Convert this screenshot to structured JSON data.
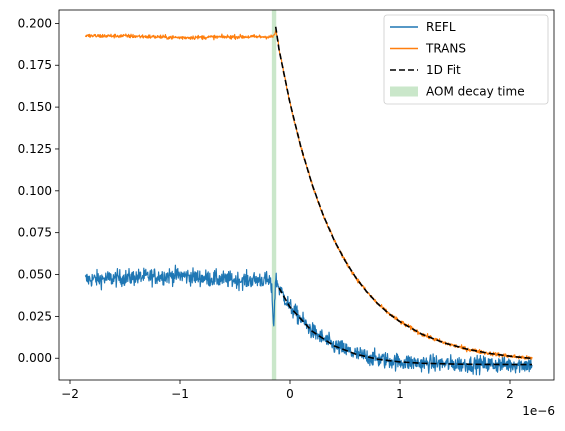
{
  "chart_data": {
    "type": "line",
    "title": "",
    "xlabel": "",
    "ylabel": "",
    "x_offset_label": "1e−6",
    "xlim": [
      -2.1,
      2.4
    ],
    "ylim": [
      -0.013,
      0.208
    ],
    "xticks": [
      -2,
      -1,
      0,
      1,
      2
    ],
    "xtick_labels": [
      "−2",
      "−1",
      "0",
      "1",
      "2"
    ],
    "yticks": [
      0.0,
      0.025,
      0.05,
      0.075,
      0.1,
      0.125,
      0.15,
      0.175,
      0.2
    ],
    "ytick_labels": [
      "0.000",
      "0.025",
      "0.050",
      "0.075",
      "0.100",
      "0.125",
      "0.150",
      "0.175",
      "0.200"
    ],
    "grid": false,
    "legend_position": "top-right",
    "series": [
      {
        "name": "REFL",
        "color": "#1f77b4",
        "style": "solid",
        "noisy": true,
        "noise": 0.0025,
        "segments": [
          [
            [
              -1.86,
              0.047
            ],
            [
              -1.5,
              0.048
            ],
            [
              -1.2,
              0.049
            ],
            [
              -1.0,
              0.0495
            ],
            [
              -0.8,
              0.048
            ],
            [
              -0.6,
              0.047
            ],
            [
              -0.4,
              0.0465
            ],
            [
              -0.25,
              0.047
            ],
            [
              -0.18,
              0.046
            ]
          ],
          [
            [
              -0.18,
              0.046
            ],
            [
              -0.16,
              0.036
            ],
            [
              -0.155,
              0.027
            ],
            [
              -0.15,
              0.019
            ],
            [
              -0.145,
              0.024
            ],
            [
              -0.14,
              0.033
            ],
            [
              -0.135,
              0.042
            ],
            [
              -0.13,
              0.047
            ],
            [
              -0.12,
              0.046
            ],
            [
              -0.1,
              0.042
            ],
            [
              0.0,
              0.0305
            ],
            [
              0.2,
              0.0162
            ],
            [
              0.4,
              0.0074
            ],
            [
              0.6,
              0.0024
            ],
            [
              0.8,
              -0.0006
            ],
            [
              1.0,
              -0.0022
            ],
            [
              1.2,
              -0.003
            ],
            [
              1.5,
              -0.0035
            ],
            [
              1.8,
              -0.0037
            ],
            [
              2.2,
              -0.0038
            ]
          ]
        ]
      },
      {
        "name": "TRANS",
        "color": "#ff7f0e",
        "style": "solid",
        "noisy": true,
        "noise": 0.0006,
        "segments": [
          [
            [
              -1.86,
              0.1925
            ],
            [
              -1.5,
              0.1925
            ],
            [
              -1.0,
              0.1915
            ],
            [
              -0.5,
              0.192
            ],
            [
              -0.15,
              0.192
            ]
          ],
          [
            [
              -0.15,
              0.192
            ],
            [
              -0.13,
              0.1955
            ],
            [
              -0.11,
              0.19
            ],
            [
              -0.1,
              0.1845
            ],
            [
              0.0,
              0.1525
            ],
            [
              0.1,
              0.1259
            ],
            [
              0.2,
              0.104
            ],
            [
              0.3,
              0.0858
            ],
            [
              0.4,
              0.0707
            ],
            [
              0.5,
              0.0583
            ],
            [
              0.6,
              0.048
            ],
            [
              0.7,
              0.0395
            ],
            [
              0.8,
              0.0324
            ],
            [
              0.9,
              0.0266
            ],
            [
              1.0,
              0.0218
            ],
            [
              1.2,
              0.0143
            ],
            [
              1.4,
              0.0092
            ],
            [
              1.6,
              0.0056
            ],
            [
              1.8,
              0.003
            ],
            [
              2.0,
              0.0012
            ],
            [
              2.2,
              -0.0001
            ]
          ]
        ]
      },
      {
        "name": "1D Fit",
        "color": "#000000",
        "style": "dashed",
        "noisy": false,
        "segments": [
          [
            [
              -0.13,
              0.198
            ],
            [
              -0.1,
              0.1845
            ],
            [
              0.0,
              0.1525
            ],
            [
              0.1,
              0.1259
            ],
            [
              0.2,
              0.104
            ],
            [
              0.3,
              0.0858
            ],
            [
              0.4,
              0.0707
            ],
            [
              0.5,
              0.0583
            ],
            [
              0.6,
              0.048
            ],
            [
              0.7,
              0.0395
            ],
            [
              0.8,
              0.0324
            ],
            [
              0.9,
              0.0266
            ],
            [
              1.0,
              0.0218
            ],
            [
              1.2,
              0.0143
            ],
            [
              1.4,
              0.0092
            ],
            [
              1.6,
              0.0056
            ],
            [
              1.8,
              0.003
            ],
            [
              2.0,
              0.0012
            ],
            [
              2.2,
              -0.0001
            ]
          ],
          [
            [
              -0.1,
              0.042
            ],
            [
              0.0,
              0.0305
            ],
            [
              0.2,
              0.0162
            ],
            [
              0.4,
              0.0074
            ],
            [
              0.6,
              0.0024
            ],
            [
              0.8,
              -0.0006
            ],
            [
              1.0,
              -0.0022
            ],
            [
              1.2,
              -0.003
            ],
            [
              1.5,
              -0.0035
            ],
            [
              1.8,
              -0.0037
            ],
            [
              2.2,
              -0.0038
            ]
          ]
        ]
      }
    ],
    "band": {
      "name": "AOM decay time",
      "color": "#2ca02c",
      "opacity": 0.25,
      "x0": -0.165,
      "x1": -0.125
    },
    "legend": [
      {
        "label": "REFL",
        "kind": "line",
        "color": "#1f77b4"
      },
      {
        "label": "TRANS",
        "kind": "line",
        "color": "#ff7f0e"
      },
      {
        "label": "1D Fit",
        "kind": "dashed",
        "color": "#000000"
      },
      {
        "label": "AOM decay time",
        "kind": "patch",
        "color": "#2ca02c"
      }
    ]
  }
}
